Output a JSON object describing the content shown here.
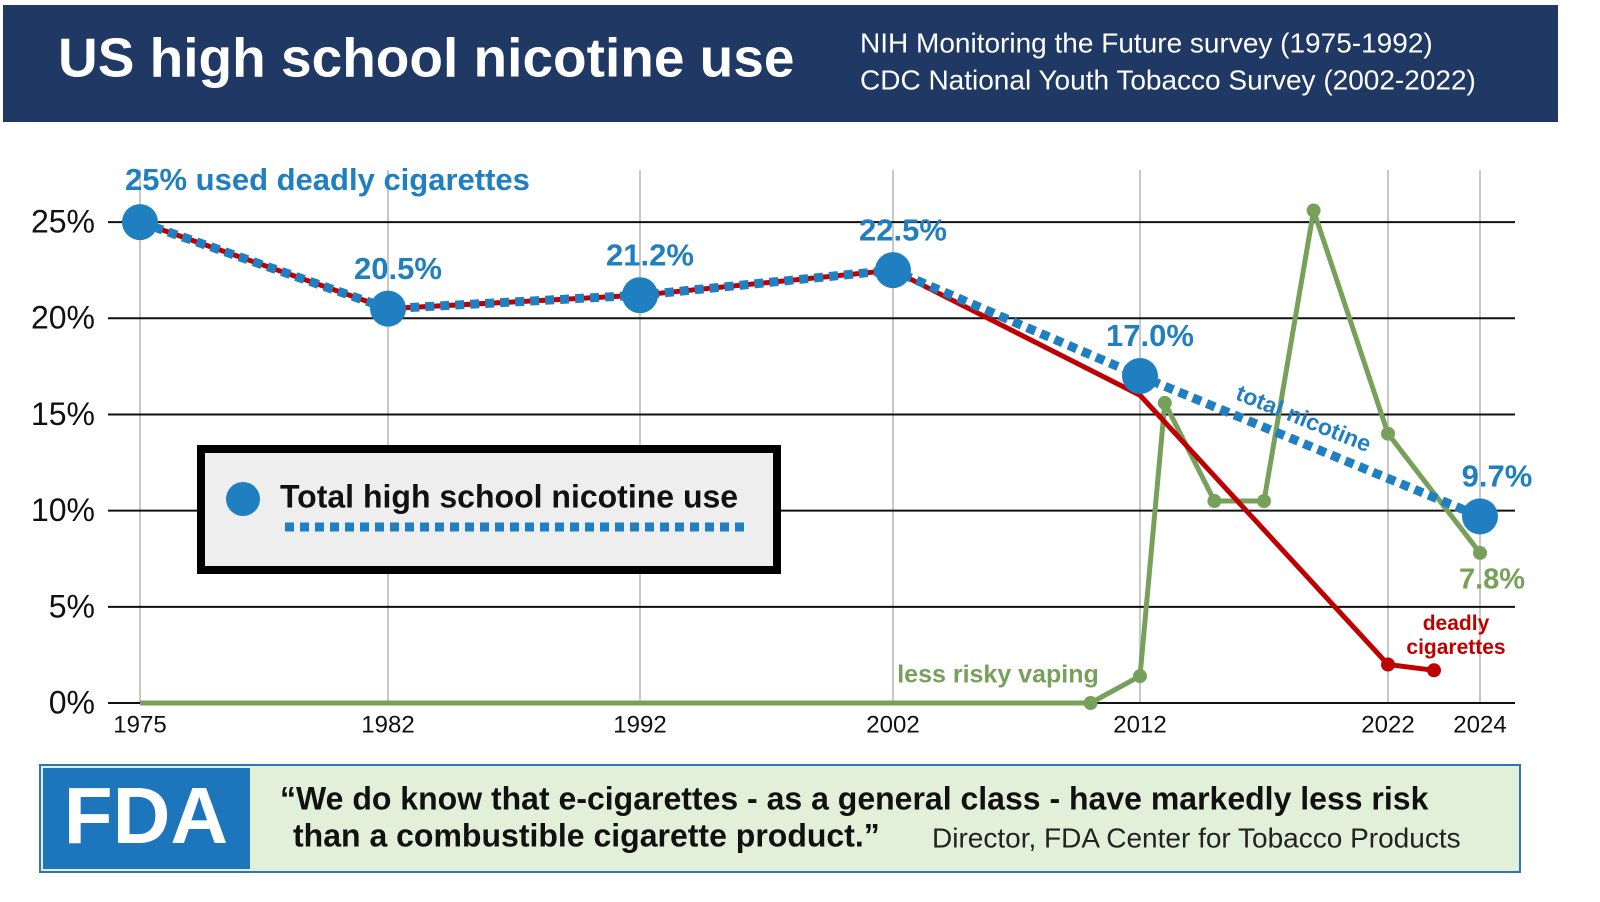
{
  "chart_data": {
    "type": "line",
    "title": "US high school nicotine use",
    "subtitle": [
      "NIH Monitoring the Future survey (1975-1992)",
      "CDC National Youth Tobacco Survey (2002-2022)"
    ],
    "annotations": {
      "start": "25% used deadly cigarettes",
      "total_line": "total nicotine"
    },
    "ylim": [
      0,
      27.5
    ],
    "yticks": [
      {
        "value": 0,
        "label": "0%"
      },
      {
        "value": 5,
        "label": "5%"
      },
      {
        "value": 10,
        "label": "10%"
      },
      {
        "value": 15,
        "label": "15%"
      },
      {
        "value": 20,
        "label": "20%"
      },
      {
        "value": 25,
        "label": "25%"
      }
    ],
    "xlim": [
      1975,
      2024
    ],
    "xticks": [
      1975,
      1982,
      1992,
      2002,
      2012,
      2022,
      2024
    ],
    "grid": true,
    "series": [
      {
        "name": "Total high school nicotine use",
        "color": "#1f7fc1",
        "style": "dotted",
        "x": [
          1975,
          1982,
          1992,
          2002,
          2012,
          2024
        ],
        "values": [
          25,
          20.5,
          21.2,
          22.5,
          17.0,
          9.7
        ],
        "value_labels": [
          null,
          "20.5%",
          "21.2%",
          "22.5%",
          "17.0%",
          "9.7%"
        ]
      },
      {
        "name": "deadly cigarettes",
        "color": "#c00000",
        "style": "solid",
        "x": [
          1975,
          1982,
          1992,
          2002,
          2012,
          2022,
          2023
        ],
        "values": [
          25,
          20.5,
          21.2,
          22.5,
          16.0,
          2.0,
          1.7
        ]
      },
      {
        "name": "less risky vaping",
        "color": "#77a05a",
        "style": "solid",
        "x": [
          1975,
          2010,
          2012,
          2013,
          2015,
          2017,
          2019,
          2022,
          2024
        ],
        "values": [
          0,
          0,
          1.4,
          15.6,
          10.5,
          10.5,
          25.6,
          14.0,
          7.8
        ],
        "value_labels": [
          null,
          null,
          null,
          null,
          null,
          null,
          null,
          null,
          "7.8%"
        ]
      }
    ]
  },
  "footer": {
    "logo": "FDA",
    "quote_lines": [
      "“We do know that e-cigarettes - as a general class - have markedly less risk",
      "than a combustible cigarette product.”"
    ],
    "attribution": "Director, FDA Center for Tobacco Products"
  }
}
